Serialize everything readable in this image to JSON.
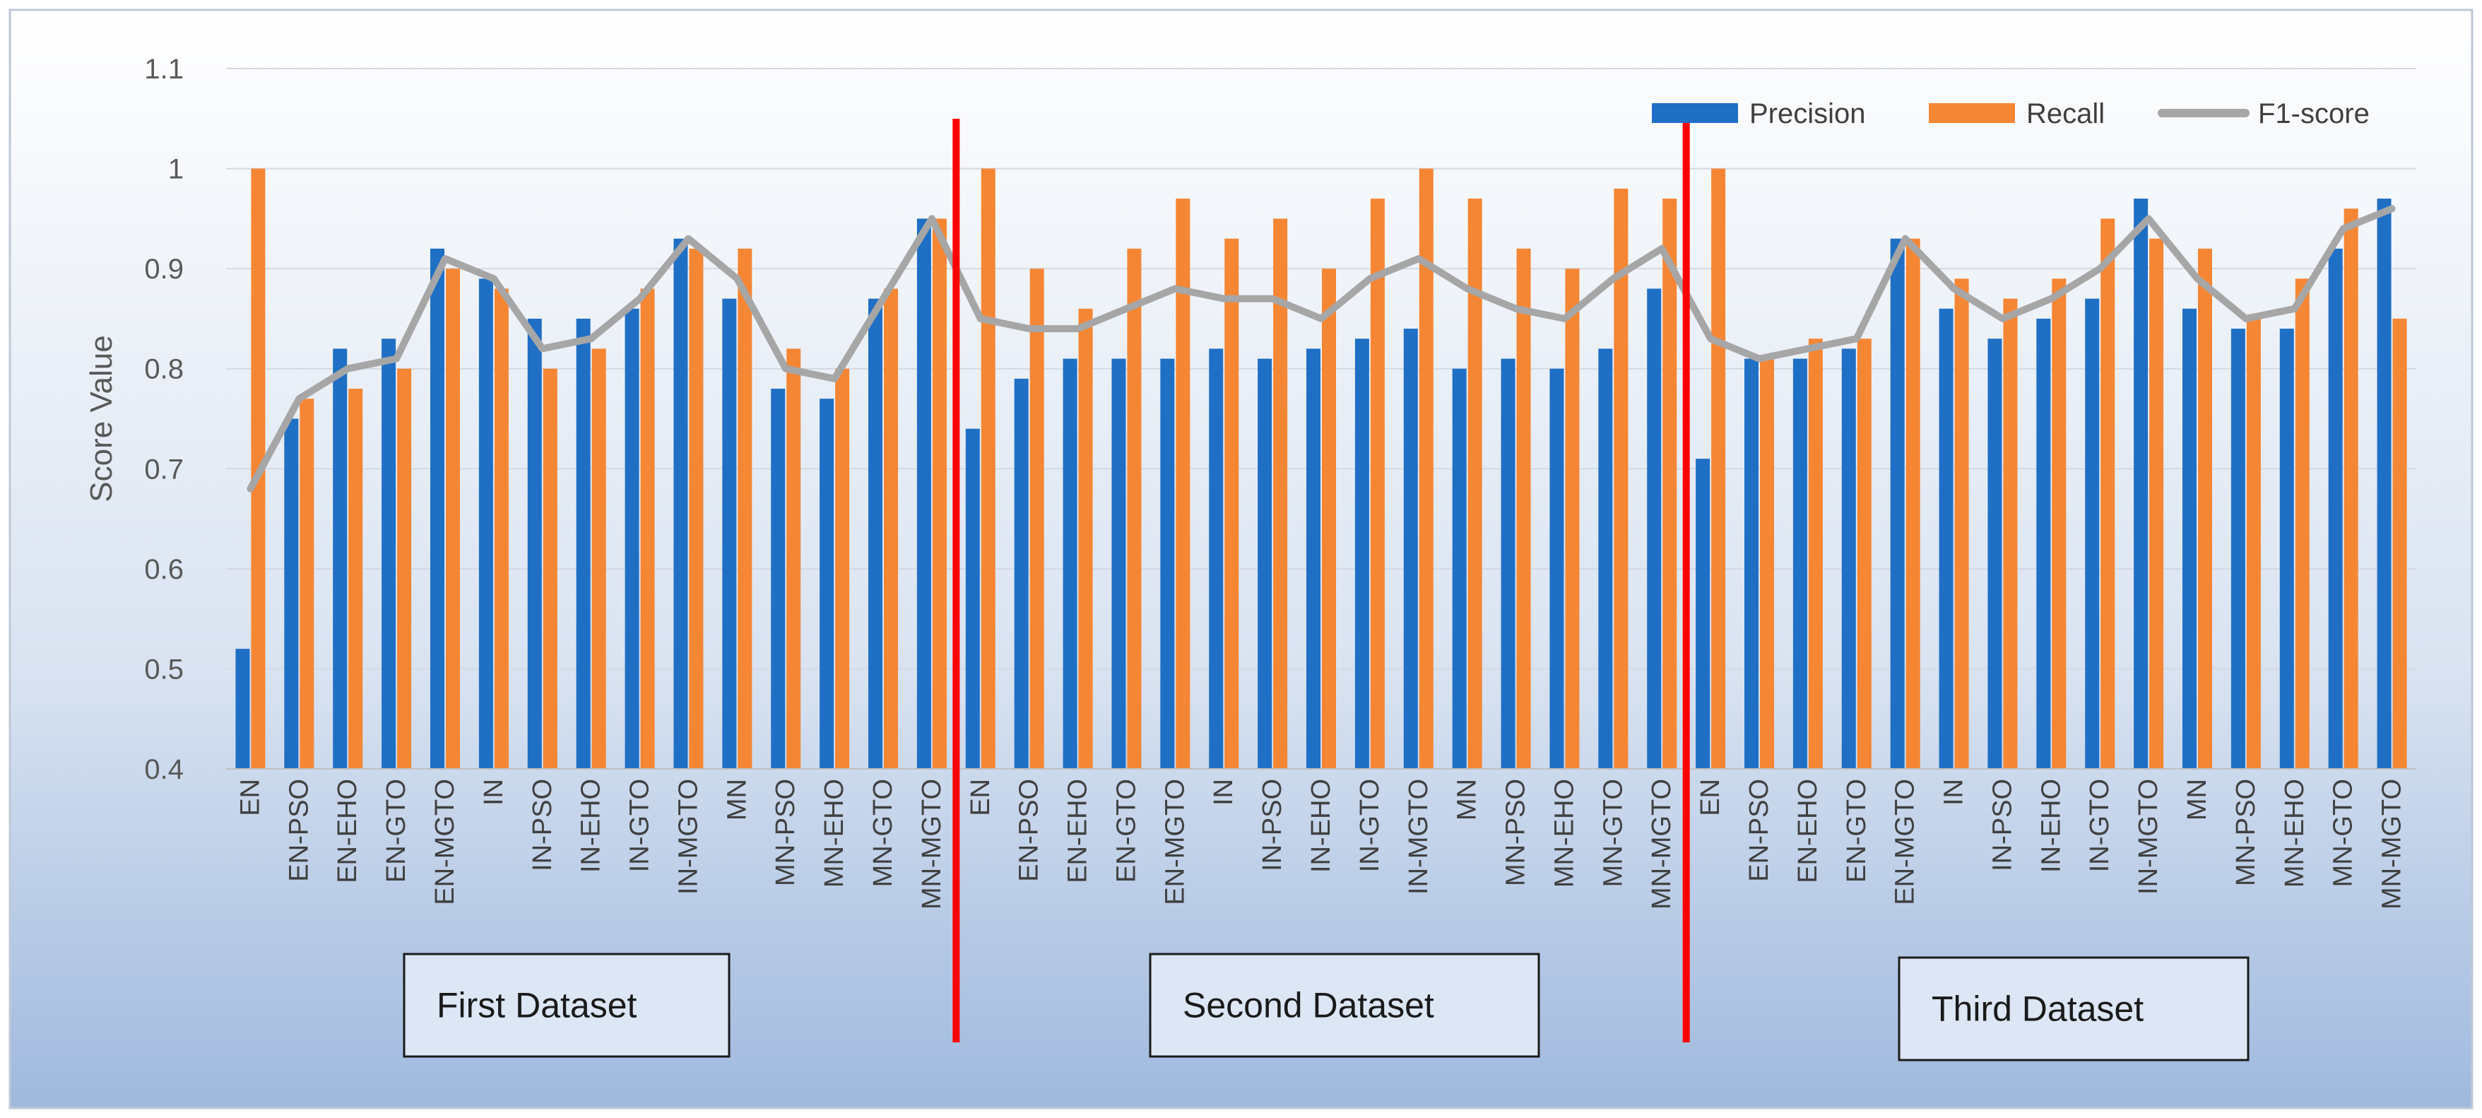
{
  "chart_data": {
    "type": "bar",
    "ylabel": "Score Value",
    "ylim": [
      0.4,
      1.1
    ],
    "yticks": [
      "0.4",
      "0.5",
      "0.6",
      "0.7",
      "0.8",
      "0.9",
      "1",
      "1.1"
    ],
    "grid": true,
    "legend_position": "top-right",
    "categories": [
      "EN",
      "EN-PSO",
      "EN-EHO",
      "EN-GTO",
      "EN-MGTO",
      "IN",
      "IN-PSO",
      "IN-EHO",
      "IN-GTO",
      "IN-MGTO",
      "MN",
      "MN-PSO",
      "MN-EHO",
      "MN-GTO",
      "MN-MGTO",
      "EN",
      "EN-PSO",
      "EN-EHO",
      "EN-GTO",
      "EN-MGTO",
      "IN",
      "IN-PSO",
      "IN-EHO",
      "IN-GTO",
      "IN-MGTO",
      "MN",
      "MN-PSO",
      "MN-EHO",
      "MN-GTO",
      "MN-MGTO",
      "EN",
      "EN-PSO",
      "EN-EHO",
      "EN-GTO",
      "EN-MGTO",
      "IN",
      "IN-PSO",
      "IN-EHO",
      "IN-GTO",
      "IN-MGTO",
      "MN",
      "MN-PSO",
      "MN-EHO",
      "MN-GTO",
      "MN-MGTO"
    ],
    "series": [
      {
        "name": "Precision",
        "kind": "bar",
        "color": "#1F6FC5",
        "values": [
          0.52,
          0.75,
          0.82,
          0.83,
          0.92,
          0.89,
          0.85,
          0.85,
          0.86,
          0.93,
          0.87,
          0.78,
          0.77,
          0.87,
          0.95,
          0.74,
          0.79,
          0.81,
          0.81,
          0.81,
          0.82,
          0.81,
          0.82,
          0.83,
          0.84,
          0.8,
          0.81,
          0.8,
          0.82,
          0.88,
          0.71,
          0.81,
          0.81,
          0.82,
          0.93,
          0.86,
          0.83,
          0.85,
          0.87,
          0.97,
          0.86,
          0.84,
          0.84,
          0.92,
          0.97
        ]
      },
      {
        "name": "Recall",
        "kind": "bar",
        "color": "#F58634",
        "values": [
          1.0,
          0.77,
          0.78,
          0.8,
          0.9,
          0.88,
          0.8,
          0.82,
          0.88,
          0.92,
          0.92,
          0.82,
          0.8,
          0.88,
          0.95,
          1.0,
          0.9,
          0.86,
          0.92,
          0.97,
          0.93,
          0.95,
          0.9,
          0.97,
          1.0,
          0.97,
          0.92,
          0.9,
          0.98,
          0.97,
          1.0,
          0.81,
          0.83,
          0.83,
          0.93,
          0.89,
          0.87,
          0.89,
          0.95,
          0.93,
          0.92,
          0.85,
          0.89,
          0.96,
          0.85
        ]
      },
      {
        "name": "F1-score",
        "kind": "line",
        "color": "#A6A6A6",
        "values": [
          0.68,
          0.77,
          0.8,
          0.81,
          0.91,
          0.89,
          0.82,
          0.83,
          0.87,
          0.93,
          0.89,
          0.8,
          0.79,
          0.87,
          0.95,
          0.85,
          0.84,
          0.84,
          0.86,
          0.88,
          0.87,
          0.87,
          0.85,
          0.89,
          0.91,
          0.88,
          0.86,
          0.85,
          0.89,
          0.92,
          0.83,
          0.81,
          0.82,
          0.83,
          0.93,
          0.88,
          0.85,
          0.87,
          0.9,
          0.95,
          0.89,
          0.85,
          0.86,
          0.94,
          0.96
        ]
      }
    ],
    "groups": [
      {
        "label": "First Dataset",
        "start": 0,
        "end": 14
      },
      {
        "label": "Second Dataset",
        "start": 15,
        "end": 29
      },
      {
        "label": "Third Dataset",
        "start": 30,
        "end": 44
      }
    ],
    "separator_color": "#FF0000"
  }
}
